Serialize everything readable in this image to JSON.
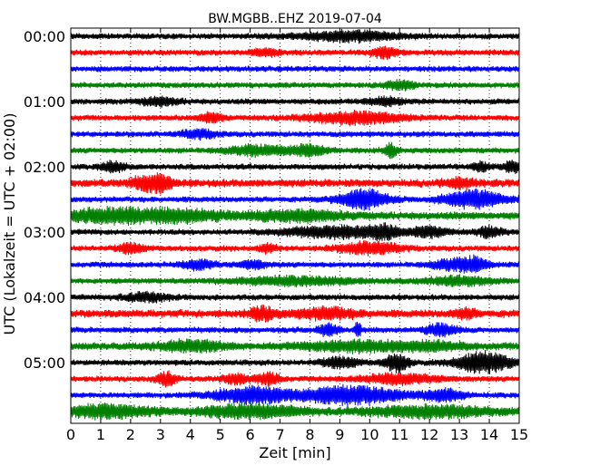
{
  "chart_data": {
    "type": "line",
    "title": "BW.MGBB..EHZ 2019-07-04",
    "xlabel": "Zeit  [min]",
    "ylabel": "UTC (Lokalzeit = UTC + 02:00)",
    "xlim": [
      0,
      15
    ],
    "x_ticks": [
      0,
      1,
      2,
      3,
      4,
      5,
      6,
      7,
      8,
      9,
      10,
      11,
      12,
      13,
      14,
      15
    ],
    "y_tick_labels": [
      "00:00",
      "01:00",
      "02:00",
      "03:00",
      "04:00",
      "05:00"
    ],
    "y_tick_rows": [
      0,
      4,
      8,
      12,
      16,
      20
    ],
    "grid": "vertical dotted",
    "row_interval_minutes": 15,
    "colors": [
      "#000000",
      "#ff0000",
      "#0000ff",
      "#008000"
    ],
    "rows": [
      {
        "start": "00:00",
        "base": 3,
        "bursts": [
          [
            9.3,
            1.6,
            5
          ]
        ]
      },
      {
        "start": "00:15",
        "base": 3,
        "bursts": [
          [
            6.5,
            0.4,
            4
          ],
          [
            10.5,
            0.4,
            5
          ]
        ]
      },
      {
        "start": "00:30",
        "base": 3,
        "bursts": []
      },
      {
        "start": "00:45",
        "base": 3,
        "bursts": [
          [
            11.0,
            0.5,
            4
          ]
        ]
      },
      {
        "start": "01:00",
        "base": 3,
        "bursts": [
          [
            3.0,
            0.6,
            4
          ],
          [
            10.5,
            0.6,
            4
          ]
        ]
      },
      {
        "start": "01:15",
        "base": 3,
        "bursts": [
          [
            9.5,
            1.5,
            6
          ],
          [
            4.7,
            0.4,
            4
          ]
        ]
      },
      {
        "start": "01:30",
        "base": 3,
        "bursts": [
          [
            4.3,
            0.6,
            4
          ]
        ]
      },
      {
        "start": "01:45",
        "base": 3,
        "bursts": [
          [
            6.3,
            1.0,
            5
          ],
          [
            8.0,
            0.6,
            5
          ],
          [
            10.7,
            0.2,
            7
          ]
        ]
      },
      {
        "start": "02:00",
        "base": 3,
        "bursts": [
          [
            1.4,
            0.4,
            5
          ],
          [
            13.7,
            0.3,
            4
          ],
          [
            14.8,
            0.3,
            6
          ]
        ]
      },
      {
        "start": "02:15",
        "base": 4,
        "bursts": [
          [
            2.4,
            0.4,
            6
          ],
          [
            3.0,
            0.4,
            8
          ],
          [
            13.0,
            0.5,
            4
          ]
        ]
      },
      {
        "start": "02:30",
        "base": 3,
        "bursts": [
          [
            9.8,
            0.8,
            10
          ],
          [
            13.5,
            1.0,
            9
          ]
        ]
      },
      {
        "start": "02:45",
        "base": 4,
        "bursts": [
          [
            1.2,
            1.4,
            6
          ],
          [
            3.5,
            1.5,
            6
          ],
          [
            7.5,
            1.6,
            5
          ]
        ]
      },
      {
        "start": "03:00",
        "base": 3,
        "bursts": [
          [
            8.8,
            1.6,
            6
          ],
          [
            10.5,
            0.5,
            6
          ],
          [
            12.0,
            0.6,
            5
          ],
          [
            14.0,
            0.4,
            5
          ]
        ]
      },
      {
        "start": "03:15",
        "base": 3,
        "bursts": [
          [
            2.0,
            0.4,
            5
          ],
          [
            10.0,
            1.0,
            6
          ],
          [
            6.6,
            0.3,
            4
          ]
        ]
      },
      {
        "start": "03:30",
        "base": 3,
        "bursts": [
          [
            4.3,
            0.5,
            5
          ],
          [
            6.1,
            0.4,
            4
          ],
          [
            13.5,
            0.4,
            8
          ],
          [
            12.7,
            0.6,
            5
          ]
        ]
      },
      {
        "start": "03:45",
        "base": 3,
        "bursts": [
          [
            7.5,
            2.0,
            4
          ],
          [
            13.0,
            1.2,
            4
          ]
        ]
      },
      {
        "start": "04:00",
        "base": 3,
        "bursts": [
          [
            2.5,
            0.8,
            4
          ]
        ]
      },
      {
        "start": "04:15",
        "base": 4,
        "bursts": [
          [
            6.4,
            0.4,
            6
          ],
          [
            8.5,
            1.0,
            5
          ],
          [
            13.2,
            0.4,
            4
          ]
        ]
      },
      {
        "start": "04:30",
        "base": 3,
        "bursts": [
          [
            8.6,
            0.3,
            6
          ],
          [
            9.6,
            0.1,
            10
          ],
          [
            12.4,
            0.5,
            6
          ]
        ]
      },
      {
        "start": "04:45",
        "base": 4,
        "bursts": [
          [
            4.0,
            1.0,
            5
          ],
          [
            9.5,
            1.5,
            5
          ],
          [
            12.0,
            1.0,
            4
          ]
        ]
      },
      {
        "start": "05:00",
        "base": 3,
        "bursts": [
          [
            10.9,
            0.4,
            9
          ],
          [
            13.8,
            0.9,
            11
          ],
          [
            9.0,
            0.6,
            5
          ]
        ]
      },
      {
        "start": "05:15",
        "base": 3,
        "bursts": [
          [
            3.2,
            0.3,
            7
          ],
          [
            5.5,
            0.4,
            5
          ],
          [
            6.6,
            0.4,
            6
          ],
          [
            11.0,
            1.2,
            5
          ]
        ]
      },
      {
        "start": "05:30",
        "base": 3,
        "bursts": [
          [
            6.0,
            1.2,
            8
          ],
          [
            9.3,
            1.8,
            9
          ],
          [
            12.5,
            0.6,
            6
          ]
        ]
      },
      {
        "start": "05:45",
        "base": 4,
        "bursts": [
          [
            1.2,
            1.4,
            6
          ],
          [
            6.0,
            1.6,
            6
          ],
          [
            12.0,
            2.0,
            5
          ]
        ]
      }
    ]
  }
}
